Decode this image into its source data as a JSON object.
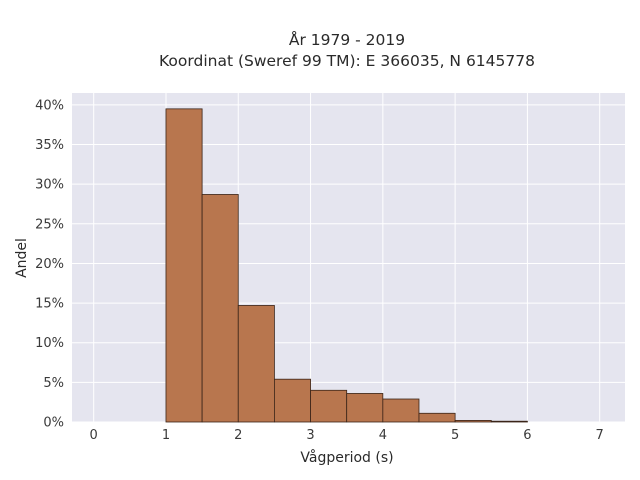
{
  "chart_data": {
    "type": "bar",
    "title_line1": "År 1979 - 2019",
    "title_line2": "Koordinat (Sweref 99 TM): E 366035, N 6145778",
    "xlabel": "Vågperiod (s)",
    "ylabel": "Andel",
    "xlim": [
      -0.3,
      7.35
    ],
    "ylim": [
      0,
      0.415
    ],
    "xticks": [
      0,
      1,
      2,
      3,
      4,
      5,
      6,
      7
    ],
    "yticks": [
      0,
      0.05,
      0.1,
      0.15,
      0.2,
      0.25,
      0.3,
      0.35,
      0.4
    ],
    "ytick_labels": [
      "0%",
      "5%",
      "10%",
      "15%",
      "20%",
      "25%",
      "30%",
      "35%",
      "40%"
    ],
    "grid": true,
    "bins": [
      {
        "x0": 1.0,
        "x1": 1.5,
        "value": 0.395
      },
      {
        "x0": 1.5,
        "x1": 2.0,
        "value": 0.287
      },
      {
        "x0": 2.0,
        "x1": 2.5,
        "value": 0.147
      },
      {
        "x0": 2.5,
        "x1": 3.0,
        "value": 0.054
      },
      {
        "x0": 3.0,
        "x1": 3.5,
        "value": 0.04
      },
      {
        "x0": 3.5,
        "x1": 4.0,
        "value": 0.036
      },
      {
        "x0": 4.0,
        "x1": 4.5,
        "value": 0.029
      },
      {
        "x0": 4.5,
        "x1": 5.0,
        "value": 0.011
      },
      {
        "x0": 5.0,
        "x1": 5.5,
        "value": 0.002
      },
      {
        "x0": 5.5,
        "x1": 6.0,
        "value": 0.001
      }
    ],
    "bar_color": "#b8764e",
    "bar_edge_color": "#3a2418",
    "plot_bg": "#e5e5ef",
    "grid_color": "#ffffff"
  }
}
